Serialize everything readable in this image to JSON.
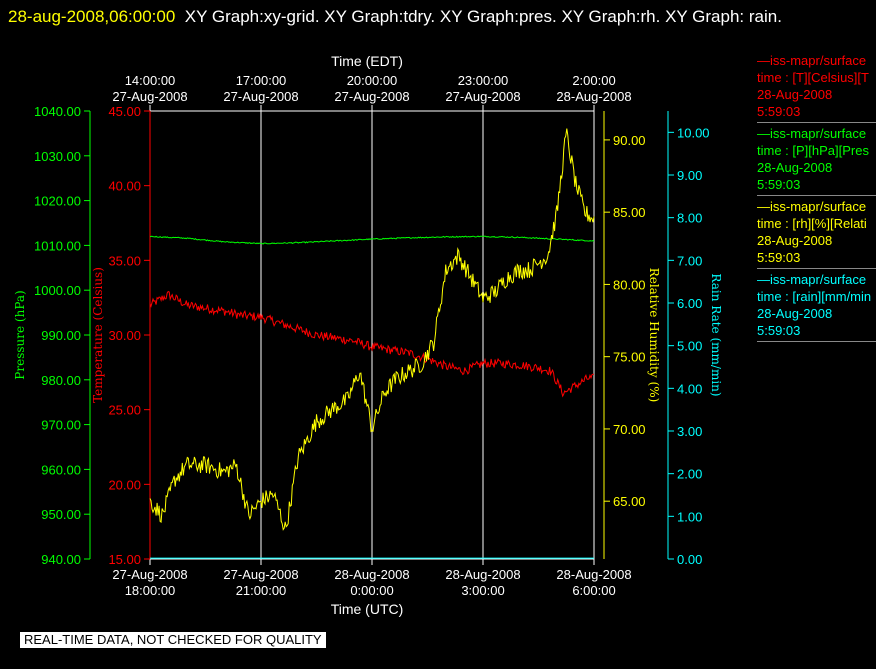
{
  "title": {
    "stamp": "28-aug-2008,06:00:00",
    "text": "XY Graph:xy-grid.  XY Graph:tdry.  XY Graph:pres.  XY Graph:rh.  XY Graph: rain."
  },
  "notice": "REAL-TIME DATA, NOT CHECKED FOR QUALITY",
  "legend": [
    {
      "color": "#ff0000",
      "line1": "—iss-mapr/surface",
      "line2": "time : [T][Celsius][T",
      "line3": "28-Aug-2008",
      "line4": "5:59:03"
    },
    {
      "color": "#00ff00",
      "line1": "—iss-mapr/surface",
      "line2": "time : [P][hPa][Pres",
      "line3": "28-Aug-2008",
      "line4": "5:59:03"
    },
    {
      "color": "#ffff00",
      "line1": "—iss-mapr/surface",
      "line2": "time : [rh][%][Relati",
      "line3": "28-Aug-2008",
      "line4": "5:59:03"
    },
    {
      "color": "#00ffff",
      "line1": "—iss-mapr/surface",
      "line2": "time : [rain][mm/min",
      "line3": "28-Aug-2008",
      "line4": "5:59:03"
    }
  ],
  "chart_data": {
    "type": "line",
    "colors": {
      "temperature": "#ff0000",
      "pressure": "#00ff00",
      "humidity": "#ffff00",
      "rain": "#00ffff",
      "grid": "#ffffff"
    },
    "top_axis": {
      "label": "Time (EDT)",
      "ticks": [
        {
          "t": 0,
          "line1": "14:00:00",
          "line2": "27-Aug-2008"
        },
        {
          "t": 3,
          "line1": "17:00:00",
          "line2": "27-Aug-2008"
        },
        {
          "t": 6,
          "line1": "20:00:00",
          "line2": "27-Aug-2008"
        },
        {
          "t": 9,
          "line1": "23:00:00",
          "line2": "27-Aug-2008"
        },
        {
          "t": 12,
          "line1": "2:00:00",
          "line2": "28-Aug-2008"
        }
      ]
    },
    "bottom_axis": {
      "label": "Time (UTC)",
      "range": [
        "27-Aug-2008 18:00:00",
        "28-Aug-2008 6:00:00"
      ],
      "ticks": [
        {
          "t": 0,
          "line1": "27-Aug-2008",
          "line2": "18:00:00"
        },
        {
          "t": 3,
          "line1": "27-Aug-2008",
          "line2": "21:00:00"
        },
        {
          "t": 6,
          "line1": "28-Aug-2008",
          "line2": "0:00:00"
        },
        {
          "t": 9,
          "line1": "28-Aug-2008",
          "line2": "3:00:00"
        },
        {
          "t": 12,
          "line1": "28-Aug-2008",
          "line2": "6:00:00"
        }
      ]
    },
    "axes": {
      "pressure": {
        "label": "Pressure (hPa)",
        "range": [
          940,
          1040
        ],
        "ticks": [
          "940.00",
          "950.00",
          "960.00",
          "970.00",
          "980.00",
          "990.00",
          "1000.00",
          "1010.00",
          "1020.00",
          "1030.00",
          "1040.00"
        ]
      },
      "temperature": {
        "label": "Temperature (Celsius)",
        "range": [
          15,
          45
        ],
        "ticks": [
          "15.00",
          "20.00",
          "25.00",
          "30.00",
          "35.00",
          "40.00",
          "45.00"
        ]
      },
      "humidity": {
        "label": "Relative Humidity (%)",
        "range": [
          61,
          92
        ],
        "ticks": [
          "65.00",
          "70.00",
          "75.00",
          "80.00",
          "85.00",
          "90.00"
        ]
      },
      "rain": {
        "label": "Rain Rate (mm/min)",
        "range": [
          0,
          10.5
        ],
        "ticks": [
          "0.00",
          "1.00",
          "2.00",
          "3.00",
          "4.00",
          "5.00",
          "6.00",
          "7.00",
          "8.00",
          "9.00",
          "10.00"
        ]
      }
    },
    "series": [
      {
        "key": "temperature",
        "axis": "temperature",
        "x": [
          "27-Aug-2008 18:00:00",
          "27-Aug-2008 18:30:00",
          "27-Aug-2008 19:00:00",
          "27-Aug-2008 19:30:00",
          "27-Aug-2008 20:00:00",
          "27-Aug-2008 20:30:00",
          "27-Aug-2008 21:00:00",
          "27-Aug-2008 21:30:00",
          "27-Aug-2008 22:00:00",
          "27-Aug-2008 22:30:00",
          "27-Aug-2008 23:00:00",
          "27-Aug-2008 23:30:00",
          "28-Aug-2008 0:00:00",
          "28-Aug-2008 0:30:00",
          "28-Aug-2008 1:00:00",
          "28-Aug-2008 1:30:00",
          "28-Aug-2008 2:00:00",
          "28-Aug-2008 2:30:00",
          "28-Aug-2008 3:00:00",
          "28-Aug-2008 3:30:00",
          "28-Aug-2008 4:00:00",
          "28-Aug-2008 4:30:00",
          "28-Aug-2008 4:50:00",
          "28-Aug-2008 5:10:00",
          "28-Aug-2008 5:30:00",
          "28-Aug-2008 5:50:00"
        ],
        "values": [
          32.0,
          32.7,
          32.0,
          31.8,
          31.6,
          31.3,
          31.2,
          30.8,
          30.4,
          30.0,
          29.8,
          29.6,
          29.2,
          29.0,
          28.8,
          28.4,
          27.9,
          27.6,
          28.1,
          28.1,
          28.0,
          27.8,
          27.6,
          26.1,
          26.6,
          27.1
        ],
        "jitter": 0.3
      },
      {
        "key": "pressure",
        "axis": "pressure",
        "x": [
          "27-Aug-2008 18:00:00",
          "27-Aug-2008 19:00:00",
          "27-Aug-2008 20:00:00",
          "27-Aug-2008 21:00:00",
          "27-Aug-2008 22:00:00",
          "27-Aug-2008 23:00:00",
          "28-Aug-2008 0:00:00",
          "28-Aug-2008 1:00:00",
          "28-Aug-2008 2:00:00",
          "28-Aug-2008 3:00:00",
          "28-Aug-2008 4:00:00",
          "28-Aug-2008 5:00:00",
          "28-Aug-2008 6:00:00"
        ],
        "values": [
          1012.0,
          1011.6,
          1010.8,
          1010.4,
          1010.6,
          1011.0,
          1011.4,
          1011.7,
          1011.9,
          1012.0,
          1011.8,
          1011.4,
          1011.0
        ],
        "jitter": 0.12
      },
      {
        "key": "humidity",
        "axis": "humidity",
        "x": [
          "27-Aug-2008 18:00:00",
          "27-Aug-2008 18:20:00",
          "27-Aug-2008 18:40:00",
          "27-Aug-2008 19:00:00",
          "27-Aug-2008 19:30:00",
          "27-Aug-2008 20:00:00",
          "27-Aug-2008 20:20:00",
          "27-Aug-2008 20:40:00",
          "27-Aug-2008 21:00:00",
          "27-Aug-2008 21:20:00",
          "27-Aug-2008 21:40:00",
          "27-Aug-2008 22:00:00",
          "27-Aug-2008 22:30:00",
          "27-Aug-2008 23:00:00",
          "27-Aug-2008 23:20:00",
          "27-Aug-2008 23:40:00",
          "28-Aug-2008 0:00:00",
          "28-Aug-2008 0:20:00",
          "28-Aug-2008 0:40:00",
          "28-Aug-2008 1:00:00",
          "28-Aug-2008 1:20:00",
          "28-Aug-2008 1:40:00",
          "28-Aug-2008 2:00:00",
          "28-Aug-2008 2:20:00",
          "28-Aug-2008 2:40:00",
          "28-Aug-2008 3:00:00",
          "28-Aug-2008 3:20:00",
          "28-Aug-2008 3:40:00",
          "28-Aug-2008 4:00:00",
          "28-Aug-2008 4:15:00",
          "28-Aug-2008 4:30:00",
          "28-Aug-2008 4:45:00",
          "28-Aug-2008 5:00:00",
          "28-Aug-2008 5:15:00",
          "28-Aug-2008 5:30:00",
          "28-Aug-2008 5:45:00",
          "28-Aug-2008 6:00:00"
        ],
        "values": [
          65.0,
          64.0,
          66.5,
          67.5,
          67.5,
          67.0,
          67.5,
          64.0,
          65.0,
          65.5,
          63.0,
          68.0,
          70.5,
          71.5,
          72.0,
          74.0,
          70.0,
          72.5,
          73.5,
          74.0,
          74.5,
          76.0,
          81.0,
          82.0,
          80.5,
          79.0,
          79.5,
          80.5,
          81.0,
          81.0,
          81.5,
          82.0,
          85.0,
          90.5,
          87.0,
          85.0,
          84.5
        ],
        "jitter": 0.6
      },
      {
        "key": "rain",
        "axis": "rain",
        "x": [
          "27-Aug-2008 18:00:00",
          "28-Aug-2008 6:00:00"
        ],
        "values": [
          0.02,
          0.02
        ],
        "jitter": 0
      }
    ]
  }
}
